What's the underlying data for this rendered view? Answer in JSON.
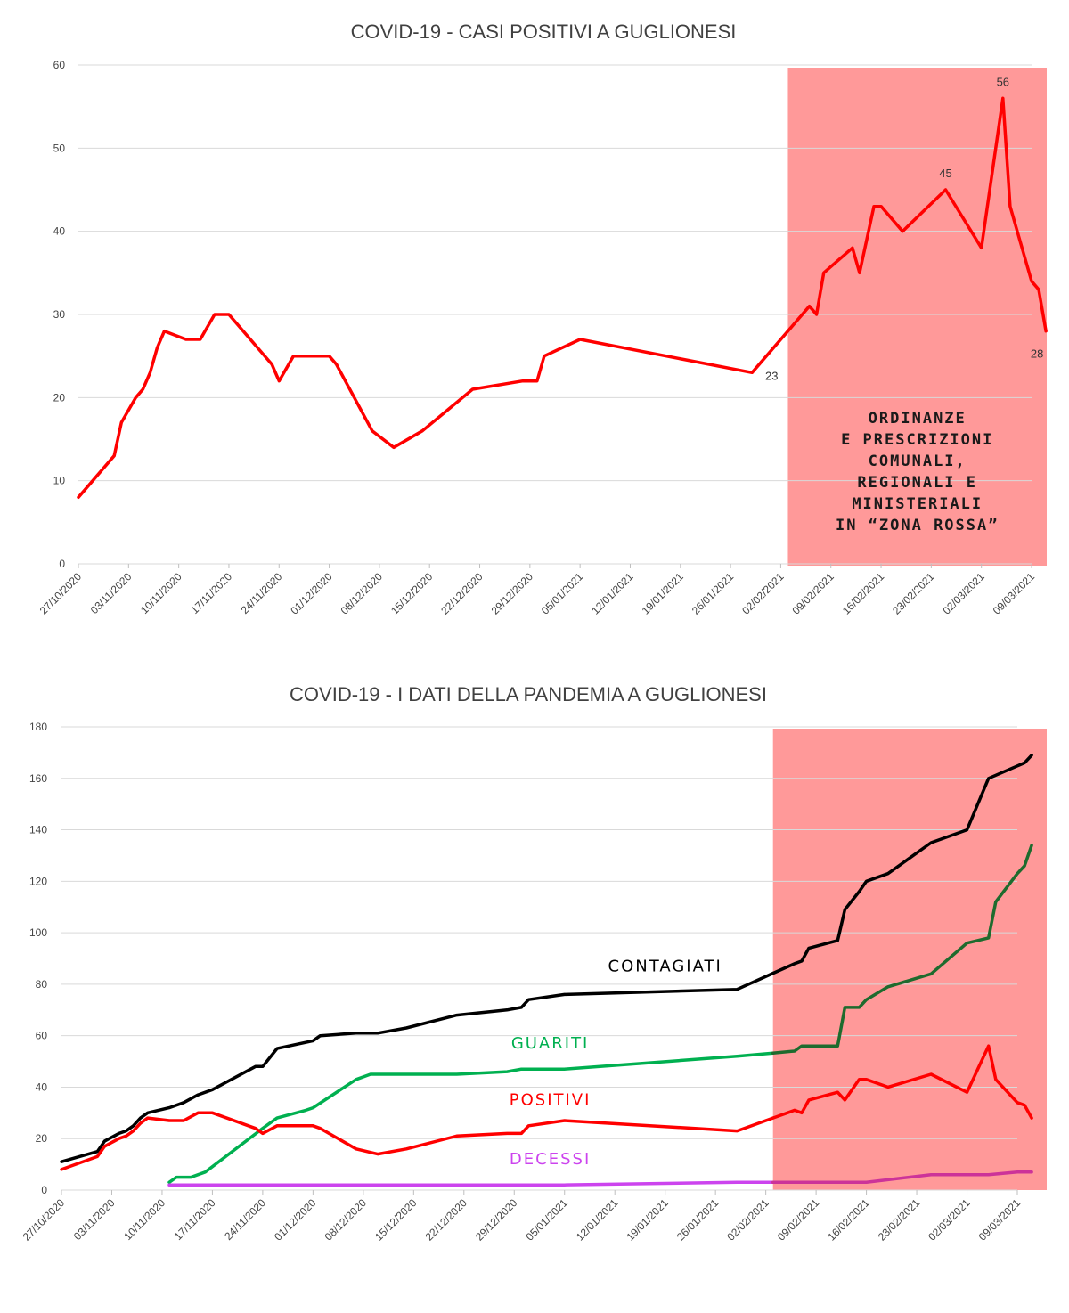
{
  "chart_data": [
    {
      "type": "line",
      "title": "COVID-19 - CASI POSITIVI A GUGLIONESI",
      "xlabel": "",
      "ylabel": "",
      "ylim": [
        0,
        60
      ],
      "yticks": [
        "0",
        "10",
        "20",
        "30",
        "40",
        "50",
        "60"
      ],
      "x_axis_type": "date",
      "xlim": [
        "2020-10-27",
        "2021-03-09"
      ],
      "xtick_labels": [
        "27/10/2020",
        "03/11/2020",
        "10/11/2020",
        "17/11/2020",
        "24/11/2020",
        "01/12/2020",
        "08/12/2020",
        "15/12/2020",
        "22/12/2020",
        "29/12/2020",
        "05/01/2021",
        "12/01/2021",
        "19/01/2021",
        "26/01/2021",
        "02/02/2021",
        "09/02/2021",
        "16/02/2021",
        "23/02/2021",
        "02/03/2021",
        "09/03/2021"
      ],
      "grid": true,
      "legend": "none",
      "highlight_region": {
        "from": "2021-02-03",
        "to": "2021-03-10",
        "color": "#ff9999",
        "label": [
          "ORDINANZE",
          "E PRESCRIZIONI",
          "COMUNALI,",
          "REGIONALI E",
          "MINISTERIALI",
          "IN “ZONA ROSSA”"
        ]
      },
      "series": [
        {
          "color": "#ff0000",
          "points": [
            [
              "2020-10-27",
              8
            ],
            [
              "2020-11-01",
              13
            ],
            [
              "2020-11-02",
              17
            ],
            [
              "2020-11-04",
              20
            ],
            [
              "2020-11-05",
              21
            ],
            [
              "2020-11-06",
              23
            ],
            [
              "2020-11-07",
              26
            ],
            [
              "2020-11-08",
              28
            ],
            [
              "2020-11-11",
              27
            ],
            [
              "2020-11-13",
              27
            ],
            [
              "2020-11-15",
              30
            ],
            [
              "2020-11-17",
              30
            ],
            [
              "2020-11-23",
              24
            ],
            [
              "2020-11-24",
              22
            ],
            [
              "2020-11-26",
              25
            ],
            [
              "2020-12-01",
              25
            ],
            [
              "2020-12-02",
              24
            ],
            [
              "2020-12-07",
              16
            ],
            [
              "2020-12-10",
              14
            ],
            [
              "2020-12-14",
              16
            ],
            [
              "2020-12-21",
              21
            ],
            [
              "2020-12-28",
              22
            ],
            [
              "2020-12-30",
              22
            ],
            [
              "2020-12-31",
              25
            ],
            [
              "2021-01-05",
              27
            ],
            [
              "2021-01-29",
              23
            ],
            [
              "2021-02-06",
              31
            ],
            [
              "2021-02-07",
              30
            ],
            [
              "2021-02-08",
              35
            ],
            [
              "2021-02-12",
              38
            ],
            [
              "2021-02-13",
              35
            ],
            [
              "2021-02-15",
              43
            ],
            [
              "2021-02-16",
              43
            ],
            [
              "2021-02-19",
              40
            ],
            [
              "2021-02-25",
              45
            ],
            [
              "2021-03-02",
              38
            ],
            [
              "2021-03-05",
              56
            ],
            [
              "2021-03-06",
              43
            ],
            [
              "2021-03-09",
              34
            ],
            [
              "2021-03-10",
              33
            ],
            [
              "2021-03-11",
              28
            ]
          ]
        }
      ],
      "annotations": [
        {
          "x": "2021-01-29",
          "y": 23,
          "text": "23"
        },
        {
          "x": "2021-02-25",
          "y": 45,
          "text": "45"
        },
        {
          "x": "2021-03-05",
          "y": 56,
          "text": "56"
        },
        {
          "x": "2021-03-11",
          "y": 28,
          "text": "28"
        }
      ]
    },
    {
      "type": "line",
      "title": "COVID-19 - I DATI DELLA PANDEMIA A GUGLIONESI",
      "xlabel": "",
      "ylabel": "",
      "ylim": [
        0,
        180
      ],
      "yticks": [
        "0",
        "20",
        "40",
        "60",
        "80",
        "100",
        "120",
        "140",
        "160",
        "180"
      ],
      "x_axis_type": "date",
      "xlim": [
        "2020-10-27",
        "2021-03-09"
      ],
      "xtick_labels": [
        "27/10/2020",
        "03/11/2020",
        "10/11/2020",
        "17/11/2020",
        "24/11/2020",
        "01/12/2020",
        "08/12/2020",
        "15/12/2020",
        "22/12/2020",
        "29/12/2020",
        "05/01/2021",
        "12/01/2021",
        "19/01/2021",
        "26/01/2021",
        "02/02/2021",
        "09/02/2021",
        "16/02/2021",
        "23/02/2021",
        "02/03/2021",
        "09/03/2021"
      ],
      "grid": true,
      "legend": "inline labels",
      "highlight_region": {
        "from": "2021-02-03",
        "to": "2021-03-13",
        "color": "#ff9999"
      },
      "series": [
        {
          "name": "CONTAGIATI",
          "color": "#000000",
          "label_color": "#000000",
          "in_zone_color": "#000000",
          "label_at": [
            "2021-01-19",
            85
          ],
          "points": [
            [
              "2020-10-27",
              11
            ],
            [
              "2020-11-01",
              15
            ],
            [
              "2020-11-02",
              19
            ],
            [
              "2020-11-04",
              22
            ],
            [
              "2020-11-05",
              23
            ],
            [
              "2020-11-06",
              25
            ],
            [
              "2020-11-07",
              28
            ],
            [
              "2020-11-08",
              30
            ],
            [
              "2020-11-11",
              32
            ],
            [
              "2020-11-13",
              34
            ],
            [
              "2020-11-15",
              37
            ],
            [
              "2020-11-17",
              39
            ],
            [
              "2020-11-23",
              48
            ],
            [
              "2020-11-24",
              48
            ],
            [
              "2020-11-26",
              55
            ],
            [
              "2020-12-01",
              58
            ],
            [
              "2020-12-02",
              60
            ],
            [
              "2020-12-07",
              61
            ],
            [
              "2020-12-10",
              61
            ],
            [
              "2020-12-14",
              63
            ],
            [
              "2020-12-21",
              68
            ],
            [
              "2020-12-28",
              70
            ],
            [
              "2020-12-30",
              71
            ],
            [
              "2020-12-31",
              74
            ],
            [
              "2021-01-05",
              76
            ],
            [
              "2021-01-29",
              78
            ],
            [
              "2021-02-06",
              88
            ],
            [
              "2021-02-07",
              89
            ],
            [
              "2021-02-08",
              94
            ],
            [
              "2021-02-12",
              97
            ],
            [
              "2021-02-13",
              109
            ],
            [
              "2021-02-15",
              116
            ],
            [
              "2021-02-16",
              120
            ],
            [
              "2021-02-19",
              123
            ],
            [
              "2021-02-25",
              135
            ],
            [
              "2021-03-02",
              140
            ],
            [
              "2021-03-05",
              160
            ],
            [
              "2021-03-10",
              166
            ],
            [
              "2021-03-11",
              169
            ]
          ]
        },
        {
          "name": "GUARITI",
          "color": "#00b050",
          "label_color": "#00b050",
          "in_zone_color": "#1e6b2e",
          "label_at": [
            "2021-01-03",
            55
          ],
          "points": [
            [
              "2020-11-11",
              3
            ],
            [
              "2020-11-12",
              5
            ],
            [
              "2020-11-14",
              5
            ],
            [
              "2020-11-16",
              7
            ],
            [
              "2020-11-24",
              24
            ],
            [
              "2020-11-26",
              28
            ],
            [
              "2020-11-30",
              31
            ],
            [
              "2020-12-01",
              32
            ],
            [
              "2020-12-07",
              43
            ],
            [
              "2020-12-09",
              45
            ],
            [
              "2020-12-21",
              45
            ],
            [
              "2020-12-28",
              46
            ],
            [
              "2020-12-30",
              47
            ],
            [
              "2021-01-05",
              47
            ],
            [
              "2021-01-29",
              52
            ],
            [
              "2021-02-06",
              54
            ],
            [
              "2021-02-07",
              56
            ],
            [
              "2021-02-12",
              56
            ],
            [
              "2021-02-13",
              71
            ],
            [
              "2021-02-15",
              71
            ],
            [
              "2021-02-16",
              74
            ],
            [
              "2021-02-19",
              79
            ],
            [
              "2021-02-25",
              84
            ],
            [
              "2021-03-02",
              96
            ],
            [
              "2021-03-05",
              98
            ],
            [
              "2021-03-06",
              112
            ],
            [
              "2021-03-09",
              123
            ],
            [
              "2021-03-10",
              126
            ],
            [
              "2021-03-11",
              134
            ]
          ]
        },
        {
          "name": "POSITIVI",
          "color": "#ff0000",
          "label_color": "#ff0000",
          "in_zone_color": "#ff0000",
          "label_at": [
            "2021-01-03",
            33
          ],
          "points": [
            [
              "2020-10-27",
              8
            ],
            [
              "2020-11-01",
              13
            ],
            [
              "2020-11-02",
              17
            ],
            [
              "2020-11-04",
              20
            ],
            [
              "2020-11-05",
              21
            ],
            [
              "2020-11-06",
              23
            ],
            [
              "2020-11-07",
              26
            ],
            [
              "2020-11-08",
              28
            ],
            [
              "2020-11-11",
              27
            ],
            [
              "2020-11-13",
              27
            ],
            [
              "2020-11-15",
              30
            ],
            [
              "2020-11-17",
              30
            ],
            [
              "2020-11-23",
              24
            ],
            [
              "2020-11-24",
              22
            ],
            [
              "2020-11-26",
              25
            ],
            [
              "2020-12-01",
              25
            ],
            [
              "2020-12-02",
              24
            ],
            [
              "2020-12-07",
              16
            ],
            [
              "2020-12-10",
              14
            ],
            [
              "2020-12-14",
              16
            ],
            [
              "2020-12-21",
              21
            ],
            [
              "2020-12-28",
              22
            ],
            [
              "2020-12-30",
              22
            ],
            [
              "2020-12-31",
              25
            ],
            [
              "2021-01-05",
              27
            ],
            [
              "2021-01-29",
              23
            ],
            [
              "2021-02-06",
              31
            ],
            [
              "2021-02-07",
              30
            ],
            [
              "2021-02-08",
              35
            ],
            [
              "2021-02-12",
              38
            ],
            [
              "2021-02-13",
              35
            ],
            [
              "2021-02-15",
              43
            ],
            [
              "2021-02-16",
              43
            ],
            [
              "2021-02-19",
              40
            ],
            [
              "2021-02-25",
              45
            ],
            [
              "2021-03-02",
              38
            ],
            [
              "2021-03-05",
              56
            ],
            [
              "2021-03-06",
              43
            ],
            [
              "2021-03-09",
              34
            ],
            [
              "2021-03-10",
              33
            ],
            [
              "2021-03-11",
              28
            ]
          ]
        },
        {
          "name": "DECESSI",
          "color": "#cc44ee",
          "label_color": "#cc44ee",
          "in_zone_color": "#cc3399",
          "label_at": [
            "2021-01-03",
            10
          ],
          "points": [
            [
              "2020-11-11",
              2
            ],
            [
              "2021-01-05",
              2
            ],
            [
              "2021-01-29",
              3
            ],
            [
              "2021-02-16",
              3
            ],
            [
              "2021-02-25",
              6
            ],
            [
              "2021-03-05",
              6
            ],
            [
              "2021-03-09",
              7
            ],
            [
              "2021-03-11",
              7
            ]
          ]
        }
      ]
    }
  ]
}
